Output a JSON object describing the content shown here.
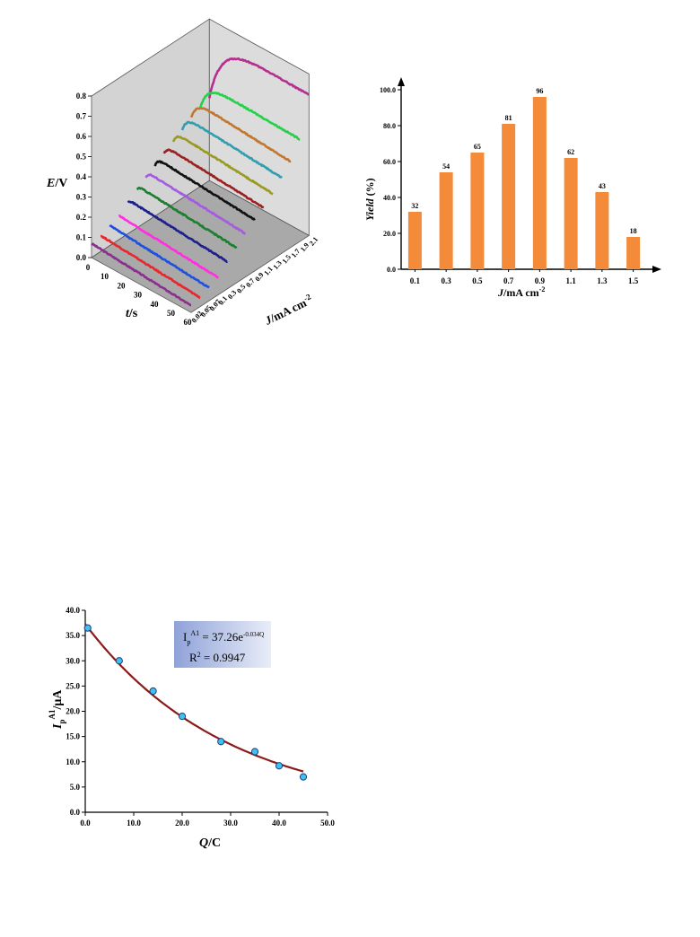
{
  "chart_data": [
    {
      "type": "line",
      "projection": "3d-waterfall",
      "xlabel_italic": "t",
      "xlabel_unit": "/s",
      "ylabel_italic": "E",
      "ylabel_unit": "/V",
      "zlabel_italic": "J",
      "zlabel_unit": "/mA cm",
      "zlabel_sup": "-2",
      "x_ticks": [
        "0",
        "10",
        "20",
        "30",
        "40",
        "50",
        "60"
      ],
      "y_ticks": [
        "0.0",
        "0.1",
        "0.2",
        "0.3",
        "0.4",
        "0.5",
        "0.6",
        "0.7",
        "0.8"
      ],
      "z_ticks": [
        "0.02",
        "0.05",
        "0.07",
        "0.1",
        "0.3",
        "0.5",
        "0.7",
        "0.9",
        "1.1",
        "1.3",
        "1.5",
        "1.7",
        "1.9",
        "2.1"
      ],
      "xlim": [
        0,
        60
      ],
      "ylim": [
        0,
        0.8
      ],
      "series": [
        {
          "z": "0.02",
          "color": "#8b2f8f",
          "start": 0.07,
          "plateau": 0.07,
          "rise": 0.5
        },
        {
          "z": "0.05",
          "color": "#e8262b",
          "start": 0.08,
          "plateau": 0.08,
          "rise": 0.5
        },
        {
          "z": "0.07",
          "color": "#1f4fe0",
          "start": 0.1,
          "plateau": 0.1,
          "rise": 0.5
        },
        {
          "z": "0.1",
          "color": "#ff2fe0",
          "start": 0.12,
          "plateau": 0.12,
          "rise": 0.6
        },
        {
          "z": "0.3",
          "color": "#1c1f8c",
          "start": 0.16,
          "plateau": 0.17,
          "rise": 0.8
        },
        {
          "z": "0.5",
          "color": "#1c7f2f",
          "start": 0.19,
          "plateau": 0.21,
          "rise": 1.0
        },
        {
          "z": "0.7",
          "color": "#a35be0",
          "start": 0.22,
          "plateau": 0.25,
          "rise": 1.2
        },
        {
          "z": "0.9",
          "color": "#111111",
          "start": 0.25,
          "plateau": 0.29,
          "rise": 1.5
        },
        {
          "z": "1.1",
          "color": "#9a2121",
          "start": 0.28,
          "plateau": 0.32,
          "rise": 1.8
        },
        {
          "z": "1.3",
          "color": "#9a9a22",
          "start": 0.31,
          "plateau": 0.36,
          "rise": 2.0
        },
        {
          "z": "1.5",
          "color": "#2f9fb0",
          "start": 0.34,
          "plateau": 0.41,
          "rise": 2.5
        },
        {
          "z": "1.7",
          "color": "#c07830",
          "start": 0.37,
          "plateau": 0.46,
          "rise": 3.0
        },
        {
          "z": "1.9",
          "color": "#25d14a",
          "start": 0.39,
          "plateau": 0.52,
          "rise": 4.0
        },
        {
          "z": "2.1",
          "color": "#b3308f",
          "start": 0.41,
          "plateau": 0.71,
          "rise": 7.0
        }
      ]
    },
    {
      "type": "bar",
      "xlabel_italic": "J",
      "xlabel_unit": "/mA cm",
      "xlabel_sup": "-2",
      "ylabel_italic": "Yield",
      "ylabel_unit": " (%)",
      "categories": [
        "0.1",
        "0.3",
        "0.5",
        "0.7",
        "0.9",
        "1.1",
        "1.3",
        "1.5"
      ],
      "values": [
        32,
        54,
        65,
        81,
        96,
        62,
        43,
        18
      ],
      "value_labels": [
        "32",
        "54",
        "65",
        "81",
        "96",
        "62",
        "43",
        "18"
      ],
      "y_ticks": [
        "0.0",
        "20.0",
        "40.0",
        "60.0",
        "80.0",
        "100.0"
      ],
      "ylim": [
        0,
        100
      ],
      "color": "#f38b3a"
    },
    {
      "type": "scatter",
      "xlabel_italic": "Q",
      "xlabel_unit": "/C",
      "ylabel_italic": "I",
      "ylabel_sub": "p",
      "ylabel_sup": "A1",
      "ylabel_unit": "/μA",
      "x_ticks": [
        "0.0",
        "10.0",
        "20.0",
        "30.0",
        "40.0",
        "50.0"
      ],
      "y_ticks": [
        "0.0",
        "5.0",
        "10.0",
        "15.0",
        "20.0",
        "25.0",
        "30.0",
        "35.0",
        "40.0"
      ],
      "xlim": [
        0,
        50
      ],
      "ylim": [
        0,
        40
      ],
      "points": [
        {
          "x": 0.5,
          "y": 36.5
        },
        {
          "x": 7,
          "y": 30.0
        },
        {
          "x": 14,
          "y": 24.0
        },
        {
          "x": 20,
          "y": 19.0
        },
        {
          "x": 28,
          "y": 14.0
        },
        {
          "x": 35,
          "y": 12.0
        },
        {
          "x": 40,
          "y": 9.2
        },
        {
          "x": 45,
          "y": 7.0
        }
      ],
      "fit": {
        "a": 37.26,
        "b": -0.034,
        "x_range": [
          0,
          45
        ],
        "color": "#8b1a1a"
      },
      "annotation": {
        "line1_main": "I",
        "line1_sub": "p",
        "line1_sup": "A1",
        "line1_eq": " = 37.26e",
        "line1_exp": "-0.034Q",
        "line2_main": "R",
        "line2_sup": "2",
        "line2_eq": " = 0.9947"
      },
      "point_color": "#3fc0f0"
    }
  ]
}
